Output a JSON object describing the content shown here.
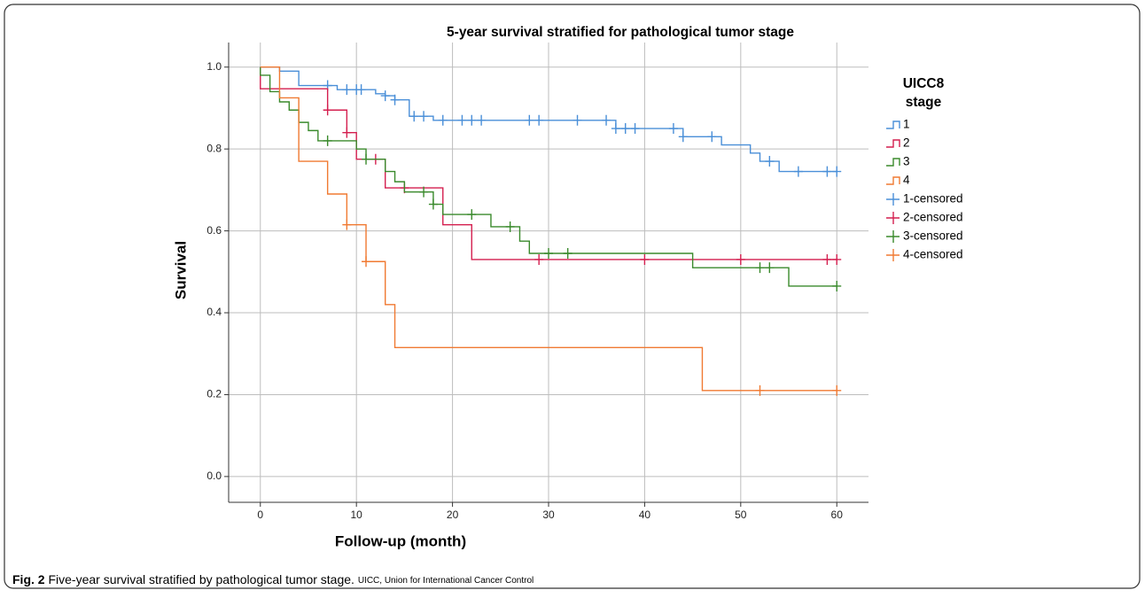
{
  "chart_data": {
    "type": "step",
    "title": "5-year survival stratified for pathological tumor stage",
    "xlabel": "Follow-up (month)",
    "ylabel": "Survival",
    "legend_title": [
      "UICC8",
      "stage"
    ],
    "xlim": [
      -3.3,
      63.3
    ],
    "ylim": [
      -0.063,
      1.06
    ],
    "xticks": [
      0,
      10,
      20,
      30,
      40,
      50,
      60
    ],
    "yticks": [
      {
        "value": 0,
        "label": "0.0"
      },
      {
        "value": 0.2,
        "label": "0.2"
      },
      {
        "value": 0.4,
        "label": "0.4"
      },
      {
        "value": 0.6,
        "label": "0.6"
      },
      {
        "value": 0.8,
        "label": "0.8"
      },
      {
        "value": 1.0,
        "label": "1.0"
      }
    ],
    "grid": true,
    "series": [
      {
        "name": "1",
        "censored_name": "1-censored",
        "color": "#4a8fd8",
        "x": [
          0,
          2,
          4,
          8,
          12,
          13,
          14,
          15.5,
          18,
          37,
          44,
          48,
          51,
          52,
          54,
          60
        ],
        "values": [
          1.0,
          0.99,
          0.955,
          0.945,
          0.935,
          0.93,
          0.92,
          0.88,
          0.87,
          0.85,
          0.83,
          0.81,
          0.79,
          0.77,
          0.745,
          0.745
        ],
        "censored_x": [
          7,
          9,
          10,
          10.5,
          13,
          14,
          16,
          17,
          19,
          21,
          22,
          23,
          28,
          29,
          33,
          36,
          37,
          38,
          39,
          43,
          44,
          47,
          53,
          56,
          59,
          60
        ],
        "censored_values": [
          0.955,
          0.945,
          0.945,
          0.945,
          0.93,
          0.92,
          0.88,
          0.88,
          0.87,
          0.87,
          0.87,
          0.87,
          0.87,
          0.87,
          0.87,
          0.87,
          0.85,
          0.85,
          0.85,
          0.85,
          0.83,
          0.83,
          0.77,
          0.745,
          0.745,
          0.745
        ]
      },
      {
        "name": "2",
        "censored_name": "2-censored",
        "color": "#d41f4f",
        "x": [
          0,
          0,
          7,
          9,
          10,
          13,
          19,
          22,
          60
        ],
        "values": [
          1.0,
          0.947,
          0.895,
          0.84,
          0.775,
          0.705,
          0.615,
          0.53,
          0.53
        ],
        "censored_x": [
          7,
          9,
          12,
          15,
          29,
          40,
          50,
          59,
          60
        ],
        "censored_values": [
          0.895,
          0.84,
          0.775,
          0.705,
          0.53,
          0.53,
          0.53,
          0.53,
          0.53
        ]
      },
      {
        "name": "3",
        "censored_name": "3-censored",
        "color": "#3a8a2c",
        "x": [
          0,
          0,
          1,
          2,
          3,
          4,
          5,
          6,
          10,
          11,
          13,
          14,
          15,
          18,
          19,
          24,
          27,
          28,
          45,
          55,
          60
        ],
        "values": [
          1.0,
          0.98,
          0.94,
          0.915,
          0.895,
          0.865,
          0.845,
          0.82,
          0.8,
          0.775,
          0.745,
          0.72,
          0.695,
          0.665,
          0.64,
          0.61,
          0.575,
          0.545,
          0.51,
          0.465,
          0.465
        ],
        "censored_x": [
          7,
          11,
          17,
          18,
          22,
          26,
          30,
          32,
          52,
          53,
          60
        ],
        "censored_values": [
          0.82,
          0.775,
          0.695,
          0.665,
          0.64,
          0.61,
          0.545,
          0.545,
          0.51,
          0.51,
          0.465
        ]
      },
      {
        "name": "4",
        "censored_name": "4-censored",
        "color": "#f07a32",
        "x": [
          0,
          2,
          4,
          7,
          9,
          11,
          13,
          14,
          46,
          60
        ],
        "values": [
          1.0,
          0.925,
          0.77,
          0.69,
          0.615,
          0.525,
          0.42,
          0.315,
          0.21,
          0.21
        ],
        "censored_x": [
          9,
          11,
          52,
          60
        ],
        "censored_values": [
          0.615,
          0.525,
          0.21,
          0.21
        ]
      }
    ]
  },
  "caption": {
    "label": "Fig. 2",
    "text": "Five-year survival stratified by pathological tumor stage.",
    "note": "UICC, Union for International Cancer Control"
  }
}
